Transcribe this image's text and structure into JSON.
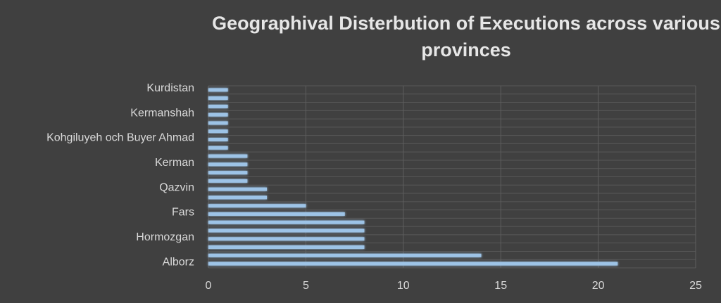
{
  "chart_data": {
    "type": "bar",
    "orientation": "horizontal",
    "title": "Geographival Disterbution of Executions across various provinces",
    "categories": [
      "Alborz",
      null,
      null,
      "Hormozgan",
      null,
      null,
      "Fars",
      null,
      null,
      "Qazvin",
      null,
      null,
      "Kerman",
      null,
      null,
      "Kohgiluyeh och Buyer Ahmad",
      null,
      null,
      "Kermanshah",
      null,
      null,
      "Kurdistan"
    ],
    "values": [
      21,
      14,
      8,
      8,
      8,
      8,
      7,
      5,
      3,
      3,
      2,
      2,
      2,
      2,
      1,
      1,
      1,
      1,
      1,
      1,
      1,
      1
    ],
    "color": "#9dc3e6",
    "xlim": [
      0,
      25
    ],
    "xticks": [
      0,
      5,
      10,
      15,
      20,
      25
    ],
    "grid": true
  }
}
